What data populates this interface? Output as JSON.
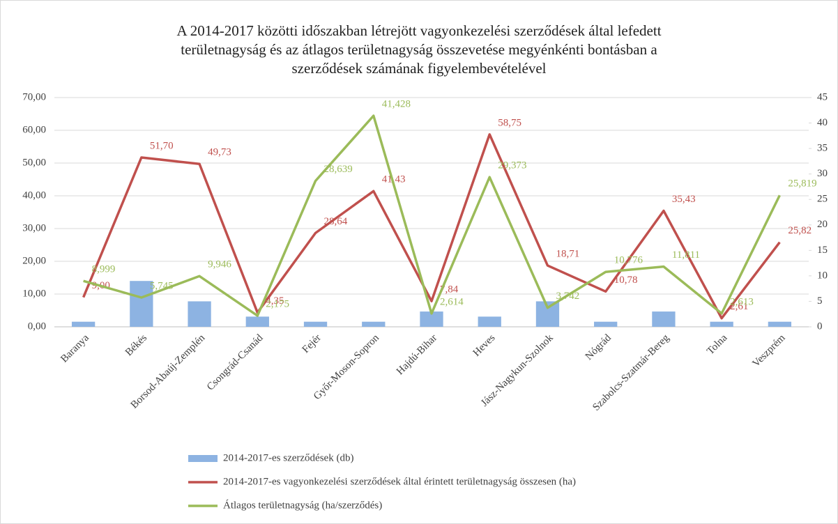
{
  "chart_data": {
    "type": "combo",
    "title": [
      "A 2014-2017 közötti időszakban létrejött vagyonkezelési szerződések által lefedett",
      "területnagyság és az átlagos területnagyság összevetése megyénkénti bontásban a",
      "szerződések számának figyelembevételével"
    ],
    "categories": [
      "Baranya",
      "Békés",
      "Borsod-Abaúj-Zemplén",
      "Csongrád-Csanád",
      "Fejér",
      "Győr-Moson-Sopron",
      "Hajdú-Bihar",
      "Heves",
      "Jász-Nagykun-Szolnok",
      "Nógrád",
      "Szabolcs-Szatmár-Bereg",
      "Tolna",
      "Veszprém"
    ],
    "series": [
      {
        "name": "2014-2017-es szerződések (db)",
        "type": "bar",
        "axis": "y2",
        "color": "#8db3e2",
        "values": [
          1,
          9,
          5,
          2,
          1,
          1,
          3,
          2,
          5,
          1,
          3,
          1,
          1
        ]
      },
      {
        "name": "2014-2017-es vagyonkezelési szerződések által érintett területnagyság összesen (ha)",
        "type": "line",
        "color": "#c0504d",
        "values": [
          9.0,
          51.7,
          49.73,
          4.35,
          28.64,
          41.43,
          7.84,
          58.75,
          18.71,
          10.78,
          35.43,
          2.61,
          25.82
        ],
        "value_labels": [
          "9,00",
          "51,70",
          "49,73",
          "4,35",
          "28,64",
          "41,43",
          "7,84",
          "58,75",
          "18,71",
          "10,78",
          "35,43",
          "2,61",
          "25,82"
        ]
      },
      {
        "name": "Átlagos területnagyság (ha/szerződés)",
        "type": "line",
        "axis": "y2",
        "color": "#9bbb59",
        "values": [
          8.999,
          5.745,
          9.946,
          2.175,
          28.639,
          41.428,
          2.614,
          29.373,
          3.742,
          10.776,
          11.811,
          2.613,
          25.819
        ],
        "value_labels": [
          "8,999",
          "5,745",
          "9,946",
          "2,175",
          "28,639",
          "41,428",
          "2,614",
          "29,373",
          "3,742",
          "10,776",
          "11,811",
          "2,613",
          "25,819"
        ]
      }
    ],
    "ylim": [
      0,
      70
    ],
    "yticks": [
      {
        "value": 0,
        "label": "0,00"
      },
      {
        "value": 10,
        "label": "10,00"
      },
      {
        "value": 20,
        "label": "20,00"
      },
      {
        "value": 30,
        "label": "30,00"
      },
      {
        "value": 40,
        "label": "40,00"
      },
      {
        "value": 50,
        "label": "50,00"
      },
      {
        "value": 60,
        "label": "60,00"
      },
      {
        "value": 70,
        "label": "70,00"
      }
    ],
    "y2lim": [
      0,
      45
    ],
    "y2ticks": [
      0,
      5,
      10,
      15,
      20,
      25,
      30,
      35,
      40,
      45
    ],
    "grid": true,
    "legend": "bottom"
  }
}
